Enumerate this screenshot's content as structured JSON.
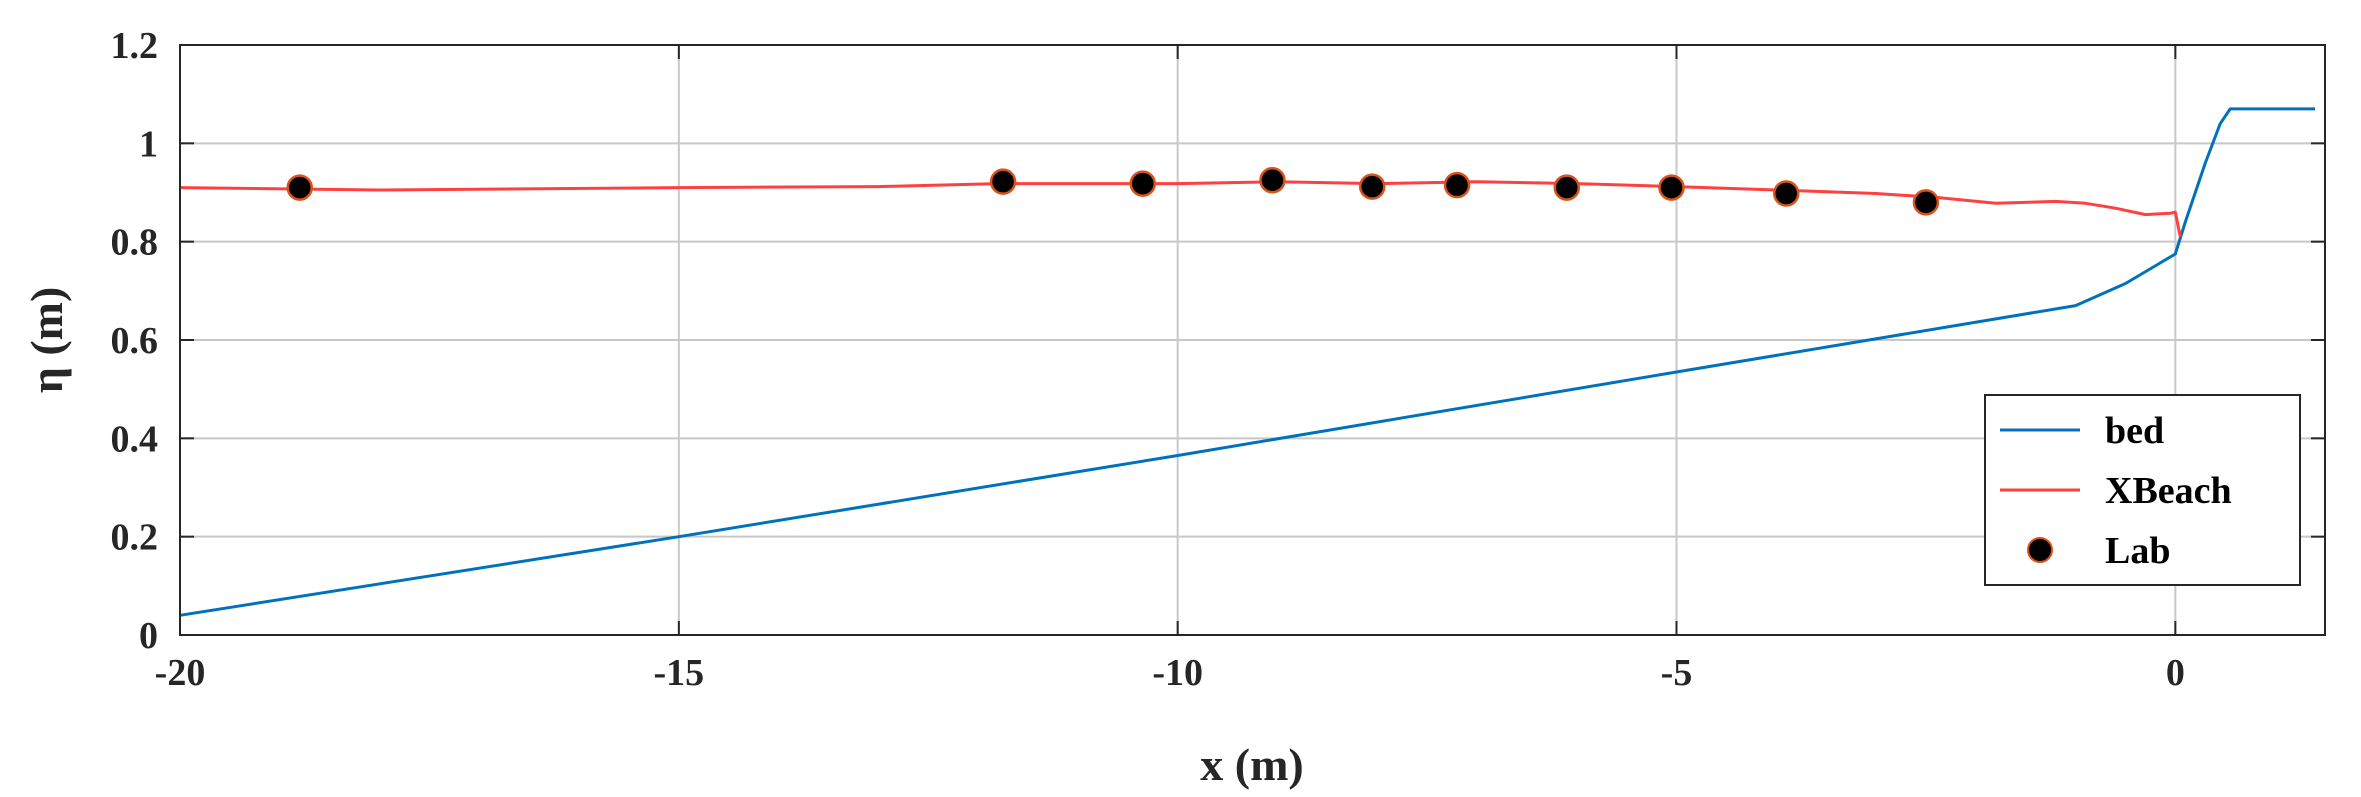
{
  "chart_data": {
    "type": "line",
    "title": "",
    "xlabel": "x (m)",
    "ylabel": "η (m)",
    "xlim": [
      -20,
      1.5
    ],
    "ylim": [
      0,
      1.2
    ],
    "xticks": [
      -20,
      -15,
      -10,
      -5,
      0
    ],
    "yticks": [
      0,
      0.2,
      0.4,
      0.6,
      0.8,
      1,
      1.2
    ],
    "grid": true,
    "legend_position": "bottom-right",
    "series": [
      {
        "name": "bed",
        "kind": "line",
        "color": "#0072BD",
        "x": [
          -20,
          -15,
          -10,
          -5,
          -1,
          -0.5,
          0,
          0.1,
          0.3,
          0.45,
          0.55,
          1.4
        ],
        "y": [
          0.04,
          0.2,
          0.365,
          0.535,
          0.67,
          0.715,
          0.775,
          0.84,
          0.96,
          1.04,
          1.07,
          1.07
        ]
      },
      {
        "name": "XBeach",
        "kind": "line",
        "color": "#FF4040",
        "x": [
          -20,
          -18,
          -15,
          -13,
          -11.8,
          -10,
          -9,
          -8,
          -7,
          -6,
          -5,
          -4,
          -3,
          -2.4,
          -1.8,
          -1.2,
          -0.9,
          -0.6,
          -0.3,
          -0.05,
          0,
          0.05
        ],
        "y": [
          0.91,
          0.905,
          0.91,
          0.912,
          0.918,
          0.918,
          0.922,
          0.918,
          0.922,
          0.918,
          0.912,
          0.905,
          0.898,
          0.89,
          0.878,
          0.882,
          0.878,
          0.868,
          0.855,
          0.858,
          0.86,
          0.81
        ]
      },
      {
        "name": "Lab",
        "kind": "scatter",
        "color": "#000000",
        "edge_color": "#D95319",
        "x": [
          -18.8,
          -11.75,
          -10.35,
          -9.05,
          -8.05,
          -7.2,
          -6.1,
          -5.05,
          -3.9,
          -2.5
        ],
        "y": [
          0.91,
          0.922,
          0.918,
          0.925,
          0.912,
          0.915,
          0.91,
          0.91,
          0.898,
          0.88
        ]
      }
    ]
  }
}
